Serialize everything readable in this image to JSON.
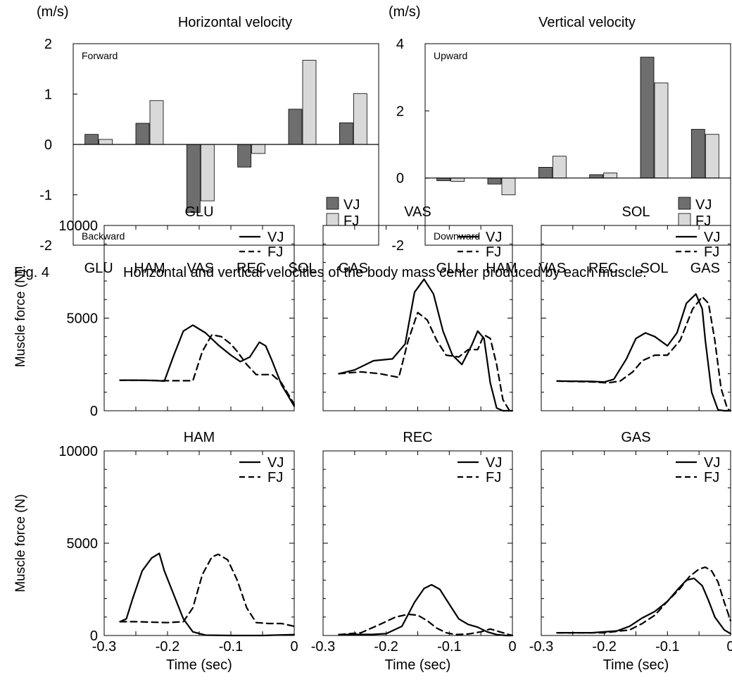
{
  "caption": {
    "label": "Fig. 4",
    "text": "Horizontal and vertical velocities of the body mass center produced by each muscle."
  },
  "colors": {
    "vj_bar": "#6e6e6e",
    "fj_bar": "#d9d9d9",
    "line": "#000000"
  },
  "chart_data": [
    {
      "type": "bar",
      "title": "Horizontal velocity",
      "unit_label": "(m/s)",
      "categories": [
        "GLU",
        "HAM",
        "VAS",
        "REC",
        "SOL",
        "GAS"
      ],
      "series": [
        {
          "name": "VJ",
          "values": [
            0.2,
            0.42,
            -1.35,
            -0.45,
            0.7,
            0.43
          ]
        },
        {
          "name": "FJ",
          "values": [
            0.1,
            0.87,
            -1.12,
            -0.18,
            1.67,
            1.01
          ]
        }
      ],
      "ylim": [
        -2,
        2
      ],
      "yticks": [
        "2",
        "1",
        "0",
        "-1",
        "-2"
      ],
      "ytick_values": [
        2,
        1,
        0,
        -1,
        -2
      ],
      "top_annotation": "Forward",
      "bottom_annotation": "Backward",
      "legend": [
        "VJ",
        "FJ"
      ],
      "legend_placement": "bottom-right"
    },
    {
      "type": "bar",
      "title": "Vertical velocity",
      "unit_label": "(m/s)",
      "categories": [
        "GLU",
        "HAM",
        "VAS",
        "REC",
        "SOL",
        "GAS"
      ],
      "series": [
        {
          "name": "VJ",
          "values": [
            -0.08,
            -0.18,
            0.32,
            0.1,
            3.6,
            1.45
          ]
        },
        {
          "name": "FJ",
          "values": [
            -0.1,
            -0.5,
            0.65,
            0.15,
            2.83,
            1.3
          ]
        }
      ],
      "ylim": [
        -2,
        4
      ],
      "yticks": [
        "4",
        "2",
        "0",
        "-2"
      ],
      "ytick_values": [
        4,
        2,
        0,
        -2
      ],
      "top_annotation": "Upward",
      "bottom_annotation": "Downward",
      "legend": [
        "VJ",
        "FJ"
      ],
      "legend_placement": "bottom-right"
    },
    {
      "type": "line",
      "title": "GLU",
      "ylabel": "Muscle force (N)",
      "yticks": [
        "10000",
        "5000",
        "0"
      ],
      "ytick_values": [
        10000,
        5000,
        0
      ],
      "xlim": [
        -0.3,
        0
      ],
      "ylim": [
        0,
        10000
      ],
      "legend": [
        "VJ",
        "FJ"
      ],
      "legend_placement": "top-right",
      "series": [
        {
          "name": "VJ",
          "x": [
            -0.275,
            -0.25,
            -0.22,
            -0.205,
            -0.19,
            -0.175,
            -0.16,
            -0.14,
            -0.12,
            -0.1,
            -0.085,
            -0.07,
            -0.055,
            -0.045,
            -0.035,
            -0.02,
            0
          ],
          "y": [
            1650,
            1650,
            1630,
            1600,
            3000,
            4300,
            4620,
            4200,
            3550,
            3000,
            2650,
            2900,
            3700,
            3500,
            2700,
            1400,
            250
          ]
        },
        {
          "name": "FJ",
          "x": [
            -0.275,
            -0.25,
            -0.2,
            -0.16,
            -0.145,
            -0.13,
            -0.115,
            -0.1,
            -0.09,
            -0.075,
            -0.06,
            -0.045,
            -0.035,
            -0.02,
            0
          ],
          "y": [
            1650,
            1650,
            1620,
            1620,
            3200,
            4100,
            4000,
            3600,
            3200,
            2500,
            1950,
            1950,
            1950,
            1500,
            350
          ]
        }
      ]
    },
    {
      "type": "line",
      "title": "VAS",
      "xlim": [
        -0.3,
        0
      ],
      "ylim": [
        0,
        10000
      ],
      "legend": [
        "VJ",
        "FJ"
      ],
      "legend_placement": "top-right",
      "series": [
        {
          "name": "VJ",
          "x": [
            -0.275,
            -0.25,
            -0.22,
            -0.19,
            -0.17,
            -0.155,
            -0.14,
            -0.125,
            -0.11,
            -0.095,
            -0.08,
            -0.065,
            -0.055,
            -0.045,
            -0.035,
            -0.025,
            -0.015,
            0
          ],
          "y": [
            2000,
            2200,
            2700,
            2800,
            3600,
            6400,
            7100,
            6300,
            4300,
            3000,
            2500,
            3500,
            4300,
            3900,
            1500,
            150,
            0,
            0
          ]
        },
        {
          "name": "FJ",
          "x": [
            -0.275,
            -0.24,
            -0.21,
            -0.18,
            -0.165,
            -0.15,
            -0.135,
            -0.12,
            -0.105,
            -0.085,
            -0.07,
            -0.055,
            -0.045,
            -0.035,
            -0.025,
            -0.015,
            -0.005,
            0
          ],
          "y": [
            2000,
            2100,
            2000,
            1800,
            3800,
            5300,
            4900,
            3800,
            3000,
            2900,
            3300,
            3300,
            4100,
            3900,
            2500,
            600,
            30,
            0
          ]
        }
      ]
    },
    {
      "type": "line",
      "title": "SOL",
      "xlim": [
        -0.3,
        0
      ],
      "ylim": [
        0,
        10000
      ],
      "legend": [
        "VJ",
        "FJ"
      ],
      "legend_placement": "top-right",
      "series": [
        {
          "name": "VJ",
          "x": [
            -0.275,
            -0.22,
            -0.2,
            -0.185,
            -0.165,
            -0.15,
            -0.135,
            -0.12,
            -0.1,
            -0.085,
            -0.07,
            -0.055,
            -0.045,
            -0.04,
            -0.03,
            -0.02,
            -0.01,
            0
          ],
          "y": [
            1600,
            1580,
            1550,
            1700,
            2800,
            3900,
            4200,
            4000,
            3500,
            4200,
            5800,
            6300,
            5500,
            3800,
            1000,
            50,
            0,
            0
          ]
        },
        {
          "name": "FJ",
          "x": [
            -0.275,
            -0.22,
            -0.195,
            -0.175,
            -0.155,
            -0.14,
            -0.12,
            -0.1,
            -0.08,
            -0.06,
            -0.045,
            -0.035,
            -0.025,
            -0.015,
            -0.005,
            0
          ],
          "y": [
            1600,
            1560,
            1500,
            1600,
            2100,
            2700,
            3000,
            3000,
            3800,
            5500,
            6150,
            5800,
            3800,
            1200,
            100,
            0
          ]
        }
      ]
    },
    {
      "type": "line",
      "title": "HAM",
      "ylabel": "Muscle force (N)",
      "yticks": [
        "10000",
        "5000",
        "0"
      ],
      "ytick_values": [
        10000,
        5000,
        0
      ],
      "xlim": [
        -0.3,
        0
      ],
      "xlabel": "Time (sec)",
      "xticks": [
        "-0.3",
        "-0.2",
        "-0.1",
        "0"
      ],
      "xtick_values": [
        -0.3,
        -0.2,
        -0.1,
        0
      ],
      "ylim": [
        0,
        10000
      ],
      "legend": [
        "VJ",
        "FJ"
      ],
      "legend_placement": "top-right",
      "series": [
        {
          "name": "VJ",
          "x": [
            -0.275,
            -0.265,
            -0.255,
            -0.24,
            -0.225,
            -0.213,
            -0.205,
            -0.19,
            -0.175,
            -0.16,
            -0.14,
            -0.1,
            -0.05,
            0
          ],
          "y": [
            750,
            900,
            2000,
            3500,
            4200,
            4450,
            3500,
            2200,
            900,
            200,
            20,
            0,
            0,
            50
          ]
        },
        {
          "name": "FJ",
          "x": [
            -0.275,
            -0.25,
            -0.2,
            -0.175,
            -0.16,
            -0.145,
            -0.13,
            -0.12,
            -0.105,
            -0.09,
            -0.075,
            -0.06,
            -0.04,
            -0.02,
            0
          ],
          "y": [
            750,
            750,
            700,
            750,
            1500,
            3300,
            4250,
            4400,
            4100,
            3000,
            1500,
            700,
            650,
            650,
            500
          ]
        }
      ]
    },
    {
      "type": "line",
      "title": "REC",
      "xlim": [
        -0.3,
        0
      ],
      "xlabel": "Time (sec)",
      "xticks": [
        "-0.3",
        "-0.2",
        "-0.1",
        "0"
      ],
      "xtick_values": [
        -0.3,
        -0.2,
        -0.1,
        0
      ],
      "ylim": [
        0,
        10000
      ],
      "legend": [
        "VJ",
        "FJ"
      ],
      "legend_placement": "top-right",
      "series": [
        {
          "name": "VJ",
          "x": [
            -0.275,
            -0.22,
            -0.2,
            -0.175,
            -0.155,
            -0.14,
            -0.128,
            -0.115,
            -0.1,
            -0.085,
            -0.07,
            -0.055,
            -0.04,
            -0.025,
            -0.01,
            0
          ],
          "y": [
            50,
            60,
            100,
            500,
            1800,
            2550,
            2750,
            2500,
            1700,
            900,
            600,
            450,
            200,
            50,
            0,
            0
          ]
        },
        {
          "name": "FJ",
          "x": [
            -0.275,
            -0.24,
            -0.21,
            -0.185,
            -0.165,
            -0.15,
            -0.135,
            -0.12,
            -0.105,
            -0.09,
            -0.07,
            -0.05,
            -0.035,
            -0.02,
            0
          ],
          "y": [
            50,
            150,
            600,
            1000,
            1150,
            1100,
            800,
            400,
            150,
            50,
            80,
            200,
            350,
            200,
            0
          ]
        }
      ]
    },
    {
      "type": "line",
      "title": "GAS",
      "xlim": [
        -0.3,
        0
      ],
      "xlabel": "Time (sec)",
      "xticks": [
        "-0.3",
        "-0.2",
        "-0.1",
        "0"
      ],
      "xtick_values": [
        -0.3,
        -0.2,
        -0.1,
        0
      ],
      "ylim": [
        0,
        10000
      ],
      "legend": [
        "VJ",
        "FJ"
      ],
      "legend_placement": "top-right",
      "series": [
        {
          "name": "VJ",
          "x": [
            -0.275,
            -0.22,
            -0.18,
            -0.16,
            -0.14,
            -0.12,
            -0.1,
            -0.085,
            -0.07,
            -0.058,
            -0.045,
            -0.035,
            -0.025,
            -0.01,
            0
          ],
          "y": [
            150,
            150,
            250,
            500,
            950,
            1300,
            1850,
            2450,
            3000,
            3100,
            2700,
            1900,
            1000,
            300,
            100
          ]
        },
        {
          "name": "FJ",
          "x": [
            -0.275,
            -0.2,
            -0.16,
            -0.14,
            -0.12,
            -0.1,
            -0.08,
            -0.065,
            -0.05,
            -0.04,
            -0.03,
            -0.02,
            -0.01,
            0
          ],
          "y": [
            150,
            150,
            300,
            650,
            1100,
            1850,
            2550,
            3200,
            3600,
            3700,
            3500,
            2900,
            1800,
            800
          ]
        }
      ]
    }
  ]
}
